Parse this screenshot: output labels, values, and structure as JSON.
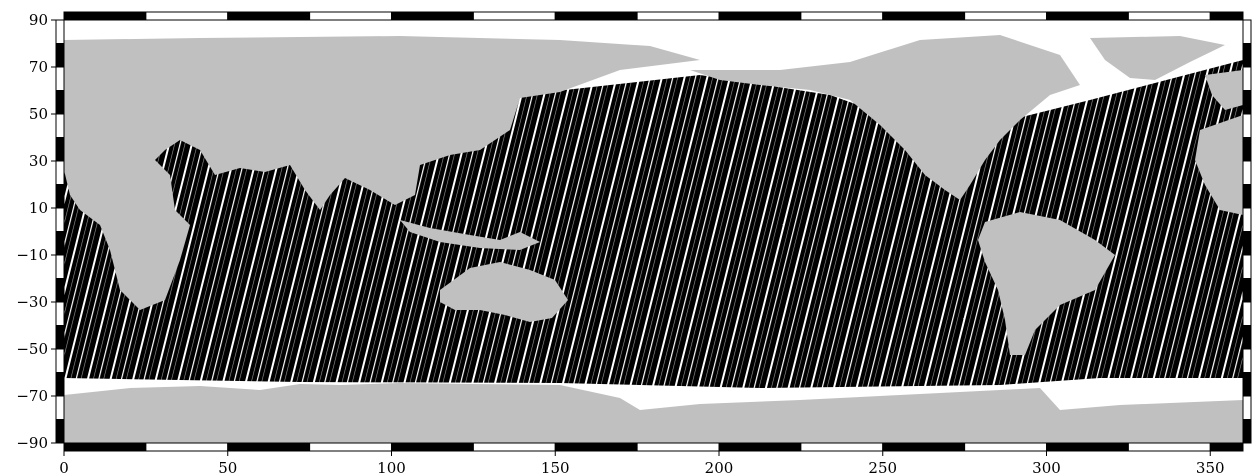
{
  "map": {
    "projection": "plate-carree",
    "longitude_range": [
      0,
      360
    ],
    "latitude_range": [
      -90,
      90
    ],
    "land_color": "#c0c0c0",
    "ice_color": "#ffffff",
    "ocean_color": "#000000",
    "track_color": "#ffffff",
    "frame_style": "checkerboard",
    "x_ticks": [
      "0",
      "50",
      "100",
      "150",
      "200",
      "250",
      "300",
      "350"
    ],
    "y_ticks": [
      "90",
      "70",
      "50",
      "30",
      "10",
      "−10",
      "−30",
      "−50",
      "−70",
      "−90"
    ]
  }
}
